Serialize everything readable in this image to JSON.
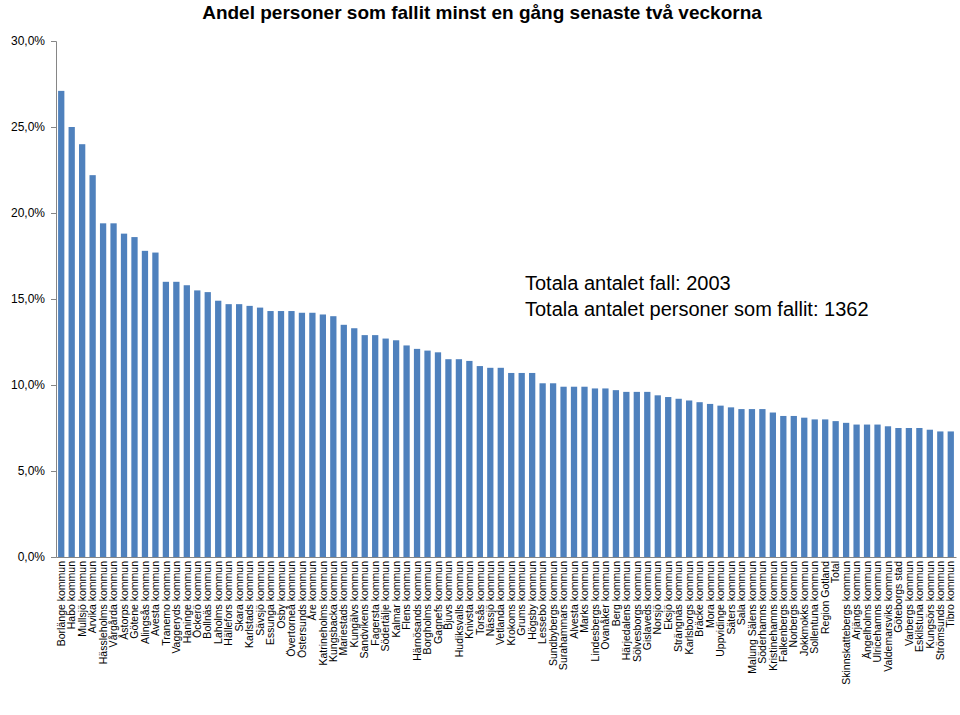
{
  "chart_data": {
    "type": "bar",
    "title": "Andel personer som fallit minst en gång senaste två veckorna",
    "annotations": [
      "Totala antalet fall: 2003",
      "Totala antalet personer som fallit: 1362"
    ],
    "categories": [
      "Borlänge kommun",
      "Habo kommun",
      "Mullsjö kommun",
      "Arvika kommun",
      "Hässleholms kommun",
      "Vårgårda kommun",
      "Åstorps kommun",
      "Götene kommun",
      "Alingsås kommun",
      "Avesta kommun",
      "Tranemo kommun",
      "Vaggeryds kommun",
      "Haninge kommun",
      "Öckerö kommun",
      "Bollnäs kommun",
      "Laholms kommun",
      "Hällefors kommun",
      "Skara kommun",
      "Karlstads kommun",
      "Sävsjö kommun",
      "Essunga kommun",
      "Osby kommun",
      "Övertorneå kommun",
      "Östersunds kommun",
      "Åre kommun",
      "Katrineholms kommun",
      "Kungsbacka kommun",
      "Mariestads kommun",
      "Kungälvs kommun",
      "Sandvikens kommun",
      "Fagersta kommun",
      "Södertälje kommun",
      "Kalmar kommun",
      "Flens kommun",
      "Härnösands kommun",
      "Borgholms kommun",
      "Gagnefs kommun",
      "Bjuvs kommun",
      "Hudiksvalls kommun",
      "Knivsta kommun",
      "Torsås kommun",
      "Nässjö kommun",
      "Vetlanda kommun",
      "Krokoms kommun",
      "Grums kommun",
      "Högsby kommun",
      "Lessebo kommun",
      "Sundbybergs kommun",
      "Surahammars kommun",
      "Alvesta kommun",
      "Marks kommun",
      "Lindesbergs kommun",
      "Ovanåker kommun",
      "Berg kommun",
      "Härjedalens kommun",
      "Sölvesborgs kommun",
      "Gislaveds kommun",
      "Norsjö kommun",
      "Eksjö kommun",
      "Strängnäs kommun",
      "Karlsborgs kommun",
      "Bräcke kommun",
      "Mora kommun",
      "Uppvidinge kommun",
      "Säters kommun",
      "Sala kommun",
      "Malung Sälens kommun",
      "Söderhamns kommun",
      "Kristinehamns kommun",
      "Falkenbergs kommun",
      "Norbergs kommun",
      "Jokkmokks kommun",
      "Sollentuna kommun",
      "Region Gotland",
      "Total",
      "Skinnskattebergs kommun",
      "Arjängs kommun",
      "Ängelholms kommun",
      "Ulricehamns kommun",
      "Valdemarsviks kommun",
      "Göteborgs stad",
      "Varbergs kommun",
      "Eskilstuna kommun",
      "Kungsörs kommun",
      "Strömsunds kommun",
      "Tibro kommun"
    ],
    "values": [
      27.1,
      25.0,
      24.0,
      22.2,
      19.4,
      19.4,
      18.8,
      18.6,
      17.8,
      17.7,
      16.0,
      16.0,
      15.8,
      15.5,
      15.4,
      14.9,
      14.7,
      14.7,
      14.6,
      14.5,
      14.3,
      14.3,
      14.3,
      14.2,
      14.2,
      14.1,
      14.0,
      13.5,
      13.3,
      12.9,
      12.9,
      12.7,
      12.6,
      12.3,
      12.1,
      12.0,
      11.9,
      11.5,
      11.5,
      11.4,
      11.1,
      11.0,
      11.0,
      10.7,
      10.7,
      10.7,
      10.1,
      10.1,
      9.9,
      9.9,
      9.9,
      9.8,
      9.8,
      9.7,
      9.6,
      9.6,
      9.6,
      9.4,
      9.3,
      9.2,
      9.1,
      9.0,
      8.9,
      8.8,
      8.7,
      8.6,
      8.6,
      8.6,
      8.4,
      8.2,
      8.2,
      8.1,
      8.0,
      8.0,
      7.9,
      7.8,
      7.7,
      7.7,
      7.7,
      7.6,
      7.5,
      7.5,
      7.5,
      7.4,
      7.3,
      7.3
    ],
    "color": "#4f81bd",
    "ylim": [
      0,
      30
    ],
    "yticks": [
      {
        "value": 0,
        "label": "0,0%"
      },
      {
        "value": 5,
        "label": "5,0%"
      },
      {
        "value": 10,
        "label": "10,0%"
      },
      {
        "value": 15,
        "label": "15,0%"
      },
      {
        "value": 20,
        "label": "20,0%"
      },
      {
        "value": 25,
        "label": "25,0%"
      },
      {
        "value": 30,
        "label": "30,0%"
      }
    ],
    "grid": false
  }
}
